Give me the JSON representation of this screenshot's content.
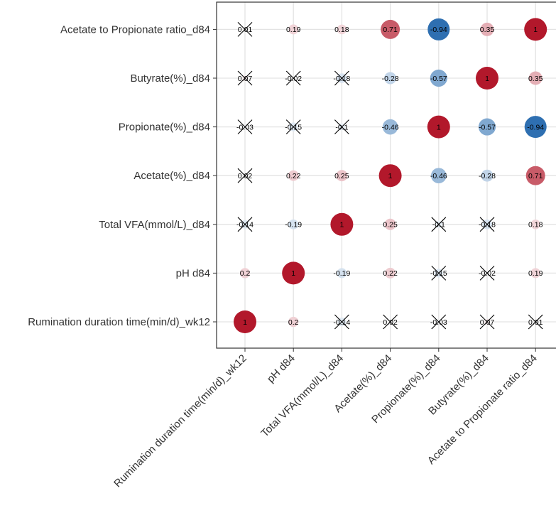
{
  "chart_data": {
    "type": "correlation-dot-matrix",
    "variables": [
      "Rumination duration time(min/d)_wk12",
      "pH d84",
      "Total VFA(mmol/L)_d84",
      "Acetate(%)_d84",
      "Propionate(%)_d84",
      "Butyrate(%)_d84",
      "Acetate to Propionate ratio_d84"
    ],
    "matrix": [
      [
        1,
        0.2,
        -0.14,
        0.02,
        -0.03,
        0.07,
        0.01
      ],
      [
        0.2,
        1,
        -0.19,
        0.22,
        -0.15,
        -0.02,
        0.19
      ],
      [
        -0.14,
        -0.19,
        1,
        0.25,
        -0.1,
        -0.18,
        0.18
      ],
      [
        0.02,
        0.22,
        0.25,
        1,
        -0.46,
        -0.28,
        0.71
      ],
      [
        -0.03,
        -0.15,
        -0.1,
        -0.46,
        1,
        -0.57,
        -0.94
      ],
      [
        0.07,
        -0.02,
        -0.18,
        -0.28,
        -0.57,
        1,
        0.35
      ],
      [
        0.01,
        0.19,
        0.18,
        0.71,
        -0.94,
        0.35,
        1
      ]
    ],
    "labels": [
      [
        "1",
        "0.2",
        "-0.14",
        "0.02",
        "-0.03",
        "0.07",
        "0.01"
      ],
      [
        "0.2",
        "1",
        "-0.19",
        "0.22",
        "-0.15",
        "-0.02",
        "0.19"
      ],
      [
        "-0.14",
        "-0.19",
        "1",
        "0.25",
        "-0.1",
        "-0.18",
        "0.18"
      ],
      [
        "0.02",
        "0.22",
        "0.25",
        "1",
        "-0.46",
        "-0.28",
        "0.71"
      ],
      [
        "-0.03",
        "-0.15",
        "-0.1",
        "-0.46",
        "1",
        "-0.57",
        "-0.94"
      ],
      [
        "0.07",
        "-0.02",
        "-0.18",
        "-0.28",
        "-0.57",
        "1",
        "0.35"
      ],
      [
        "0.01",
        "0.19",
        "0.18",
        "0.71",
        "-0.94",
        "0.35",
        "1"
      ]
    ],
    "crossed_out": [
      [
        false,
        false,
        true,
        true,
        true,
        true,
        true
      ],
      [
        false,
        false,
        false,
        false,
        true,
        true,
        false
      ],
      [
        true,
        false,
        false,
        false,
        true,
        true,
        false
      ],
      [
        true,
        false,
        false,
        false,
        false,
        false,
        false
      ],
      [
        true,
        true,
        true,
        false,
        false,
        false,
        false
      ],
      [
        true,
        true,
        true,
        false,
        false,
        false,
        false
      ],
      [
        true,
        false,
        false,
        false,
        false,
        false,
        false
      ]
    ],
    "color_scale": {
      "negative": "#2166ac",
      "zero": "#ffffff",
      "positive": "#b2182b"
    },
    "grid": true,
    "title": "",
    "xlabel": "",
    "ylabel": ""
  }
}
